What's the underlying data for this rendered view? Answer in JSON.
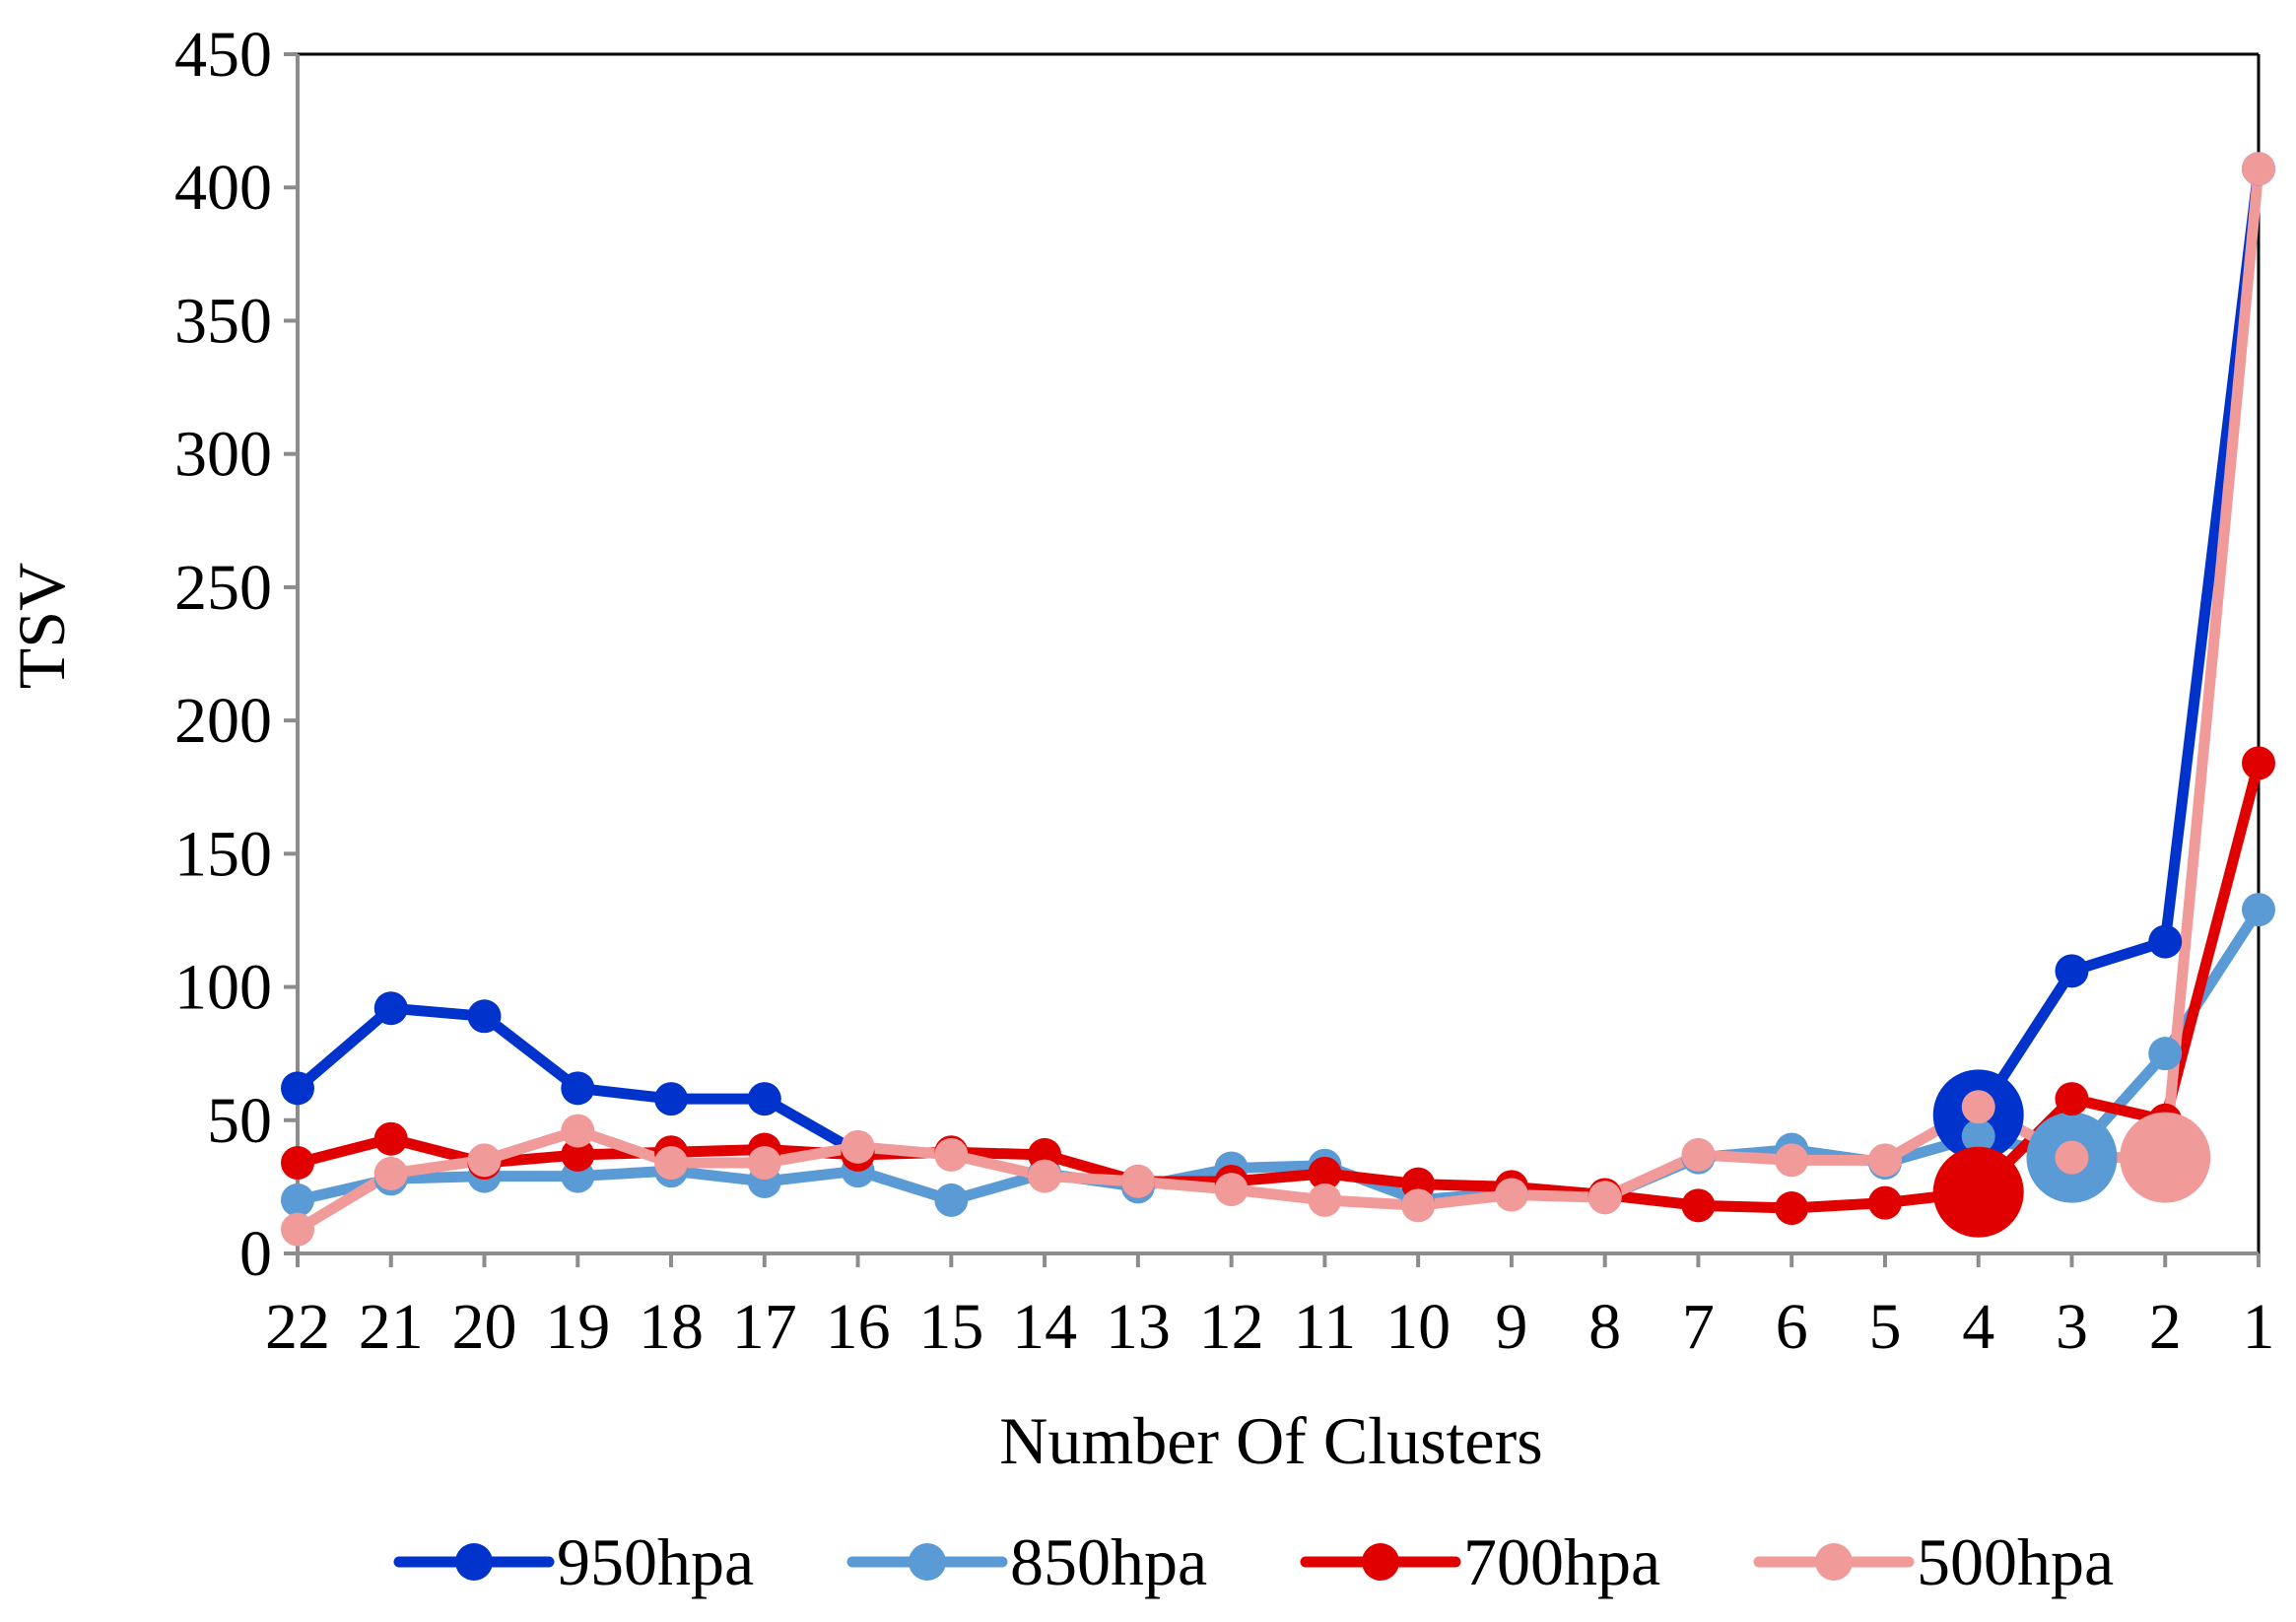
{
  "chart_data": {
    "type": "line",
    "title": "",
    "xlabel": "Number Of Clusters",
    "ylabel": "TSV",
    "ylim": [
      0,
      450
    ],
    "yticks": [
      0,
      50,
      100,
      150,
      200,
      250,
      300,
      350,
      400,
      450
    ],
    "categories": [
      "22",
      "21",
      "20",
      "19",
      "18",
      "17",
      "16",
      "15",
      "14",
      "13",
      "12",
      "11",
      "10",
      "9",
      "8",
      "7",
      "6",
      "5",
      "4",
      "3",
      "2",
      "1"
    ],
    "legend_position": "bottom",
    "series": [
      {
        "name": "950hpa",
        "color": "#0033CC",
        "values": [
          62,
          92,
          89,
          62,
          58,
          58,
          38,
          null,
          null,
          null,
          null,
          null,
          null,
          null,
          null,
          null,
          null,
          null,
          52,
          106,
          117,
          407
        ],
        "highlight_index": 18
      },
      {
        "name": "850hpa",
        "color": "#5B9BD5",
        "values": [
          20,
          28,
          29,
          29,
          31,
          27,
          31,
          20,
          30,
          25,
          32,
          33,
          20,
          23,
          21,
          36,
          39,
          34,
          44,
          36,
          75,
          129
        ],
        "highlight_index": 19
      },
      {
        "name": "700hpa",
        "color": "#E00000",
        "values": [
          34,
          43,
          34,
          37,
          38,
          39,
          37,
          38,
          37,
          27,
          27,
          30,
          26,
          25,
          22,
          18,
          17,
          19,
          23,
          58,
          50,
          184
        ],
        "highlight_index": 18
      },
      {
        "name": "500hpa",
        "color": "#F09A9A",
        "values": [
          9,
          30,
          35,
          46,
          34,
          34,
          40,
          37,
          29,
          27,
          24,
          20,
          18,
          22,
          21,
          37,
          35,
          35,
          55,
          36,
          36,
          407
        ],
        "highlight_index": 20
      }
    ]
  }
}
